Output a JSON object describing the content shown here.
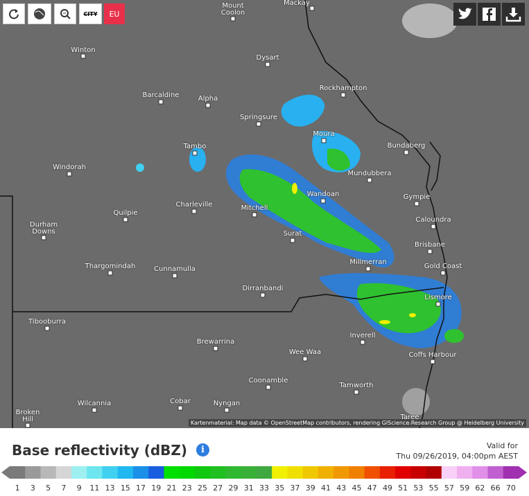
{
  "toolbar": {
    "city": "CITY",
    "eu": "EU"
  },
  "places": [
    "Mackay",
    "Mount Coolon",
    "Winton",
    "Dysart",
    "Rockhampton",
    "Barcaldine",
    "Alpha",
    "Springsure",
    "Moura",
    "Bundaberg",
    "Tambo",
    "Windorah",
    "Mundubbera",
    "Wandoan",
    "Gympie",
    "Charleville",
    "Mitchell",
    "Quilpie",
    "Caloundra",
    "Durham Downs",
    "Surat",
    "Brisbane",
    "Millmerran",
    "Gold Coast",
    "Thargomindah",
    "Cunnamulla",
    "Dirranbandi",
    "Lismore",
    "Tibooburra",
    "Inverell",
    "Brewarrina",
    "Wee Waa",
    "Coffs Harbour",
    "Coonamble",
    "Tamworth",
    "Wilcannia",
    "Cobar",
    "Nyngan",
    "Broken Hill",
    "Taree"
  ],
  "attribution": "Kartenmaterial: Map data © OpenStreetMap contributors, rendering GIScience Research Group @ Heidelberg University",
  "legend": {
    "title": "Base reflectivity (dBZ)",
    "info": "i",
    "valid_label": "Valid for",
    "valid_time": "Thu 09/26/2019, 04:00pm AEST",
    "ticks": [
      1,
      3,
      5,
      7,
      9,
      11,
      13,
      15,
      17,
      19,
      21,
      23,
      25,
      27,
      29,
      31,
      33,
      35,
      37,
      39,
      41,
      43,
      45,
      47,
      49,
      51,
      53,
      55,
      57,
      59,
      62,
      66,
      70
    ],
    "colors": [
      "#7a7a7a",
      "#9a9a9a",
      "#b8b8b8",
      "#d6d6d6",
      "#9ef0f0",
      "#6de6f0",
      "#40d0f0",
      "#20b8f0",
      "#1a90e8",
      "#1a5ee0",
      "#00e000",
      "#00d800",
      "#10c810",
      "#20c020",
      "#30b830",
      "#38b038",
      "#40a840",
      "#f0f000",
      "#f0e000",
      "#f0c800",
      "#f0b000",
      "#f09800",
      "#f08000",
      "#f05000",
      "#e82000",
      "#e00000",
      "#c80000",
      "#b00000",
      "#f8d0f8",
      "#f0b0f0",
      "#e090e8",
      "#c060d0",
      "#a030b0"
    ]
  }
}
